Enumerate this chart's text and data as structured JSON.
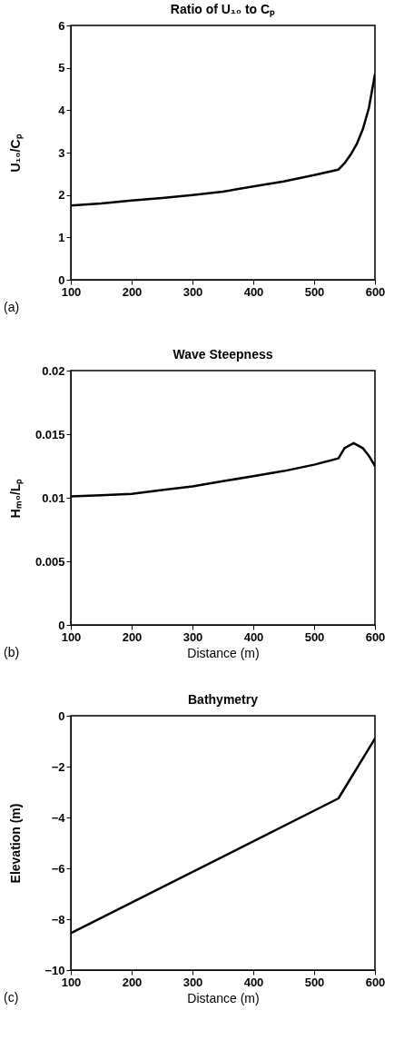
{
  "chart_data": [
    {
      "type": "line",
      "title": "Ratio of U₁₀ to Cₚ",
      "ylabel": "U₁₀/Cₚ",
      "annotations": [
        "(a)"
      ],
      "x": [
        100,
        150,
        200,
        250,
        300,
        350,
        400,
        450,
        500,
        540,
        550,
        560,
        570,
        580,
        590,
        600
      ],
      "series": [
        {
          "color": "#000000",
          "values": [
            1.75,
            1.8,
            1.87,
            1.93,
            2.0,
            2.08,
            2.2,
            2.32,
            2.47,
            2.6,
            2.75,
            2.95,
            3.2,
            3.55,
            4.05,
            4.85
          ]
        }
      ],
      "xlim": [
        100,
        600
      ],
      "xticks": [
        100,
        200,
        300,
        400,
        500,
        600
      ],
      "ylim": [
        0,
        6
      ],
      "yticks": [
        0,
        1,
        2,
        3,
        4,
        5,
        6
      ],
      "grid": false
    },
    {
      "type": "line",
      "title": "Wave Steepness",
      "xlabel": "Distance (m)",
      "ylabel": "Hₘ₀/Lₚ",
      "annotations": [
        "(b)"
      ],
      "x": [
        100,
        150,
        200,
        250,
        300,
        350,
        400,
        450,
        500,
        540,
        550,
        565,
        580,
        590,
        600
      ],
      "series": [
        {
          "color": "#000000",
          "values": [
            0.0101,
            0.0102,
            0.0103,
            0.0106,
            0.0109,
            0.0113,
            0.0117,
            0.0121,
            0.0126,
            0.0131,
            0.0139,
            0.0143,
            0.0139,
            0.0133,
            0.0125
          ]
        }
      ],
      "xlim": [
        100,
        600
      ],
      "xticks": [
        100,
        200,
        300,
        400,
        500,
        600
      ],
      "ylim": [
        0,
        0.02
      ],
      "yticks": [
        0,
        0.005,
        0.01,
        0.015,
        0.02
      ],
      "grid": false
    },
    {
      "type": "line",
      "title": "Bathymetry",
      "xlabel": "Distance (m)",
      "ylabel": "Elevation (m)",
      "annotations": [
        "(c)"
      ],
      "x": [
        100,
        540,
        600
      ],
      "series": [
        {
          "color": "#000000",
          "values": [
            -8.55,
            -3.25,
            -0.9
          ]
        }
      ],
      "xlim": [
        100,
        600
      ],
      "xticks": [
        100,
        200,
        300,
        400,
        500,
        600
      ],
      "ylim": [
        -10,
        0
      ],
      "yticks": [
        -10,
        -8,
        -6,
        -4,
        -2,
        0
      ],
      "grid": false
    }
  ]
}
